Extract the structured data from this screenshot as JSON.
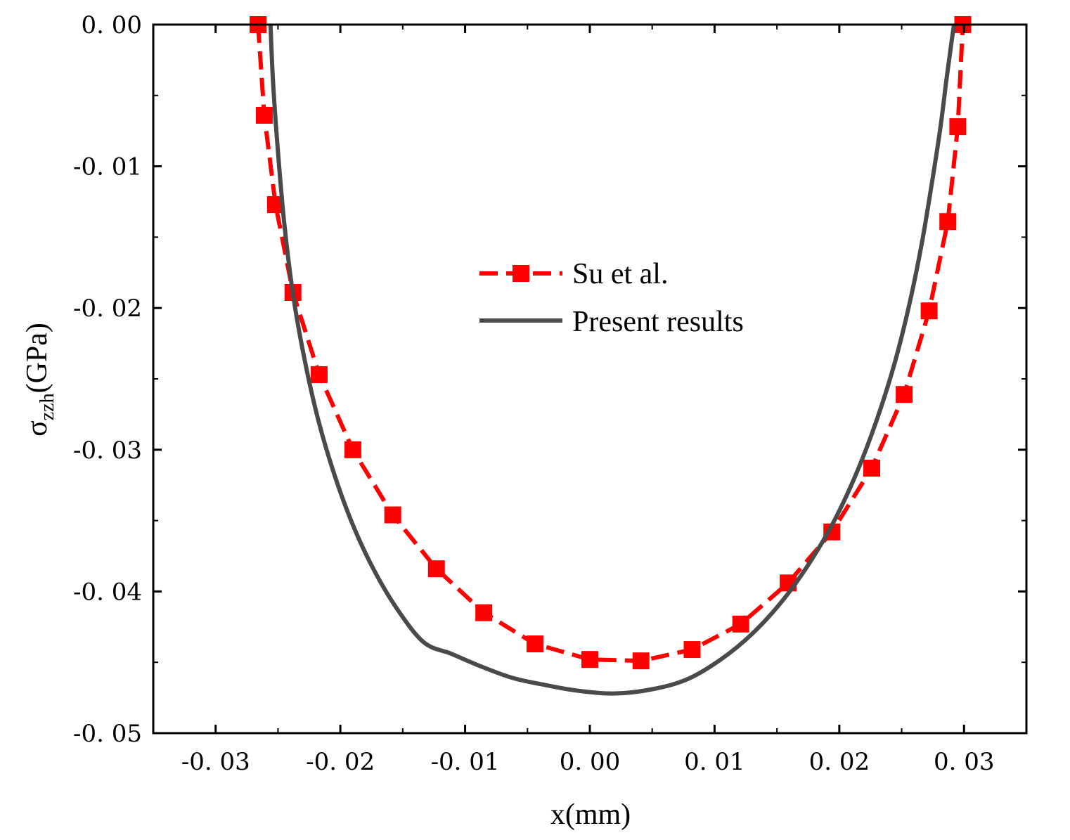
{
  "chart_data": {
    "type": "line",
    "title": "",
    "xlabel": "x(mm)",
    "ylabel_symbol": "σ",
    "ylabel_subscript": "zzh",
    "ylabel_unit": "(GPa)",
    "xlim": [
      -0.035,
      0.035
    ],
    "ylim": [
      -0.05,
      0.0
    ],
    "xticks": [
      -0.03,
      -0.02,
      -0.01,
      0.0,
      0.01,
      0.02,
      0.03
    ],
    "xtick_labels": [
      "-0. 03",
      "-0. 02",
      "-0. 01",
      "0. 00",
      "0. 01",
      "0. 02",
      "0. 03"
    ],
    "yticks": [
      0.0,
      -0.01,
      -0.02,
      -0.03,
      -0.04,
      -0.05
    ],
    "ytick_labels": [
      "0. 00",
      "-0. 01",
      "-0. 02",
      "-0. 03",
      "-0. 04",
      "-0. 05"
    ],
    "grid": false,
    "legend_position": "center",
    "series": [
      {
        "name": "Su et al.",
        "color": "#ff0000",
        "style": "dashed",
        "marker": "square",
        "x": [
          -0.0266,
          -0.0261,
          -0.0252,
          -0.0238,
          -0.0217,
          -0.019,
          -0.0158,
          -0.0123,
          -0.0085,
          -0.0044,
          0.0,
          0.0041,
          0.0082,
          0.0121,
          0.0159,
          0.0194,
          0.0226,
          0.0252,
          0.0272,
          0.0287,
          0.0295,
          0.0299
        ],
        "y": [
          0.0,
          -0.0064,
          -0.0127,
          -0.0189,
          -0.0247,
          -0.03,
          -0.0346,
          -0.0384,
          -0.0415,
          -0.0437,
          -0.0448,
          -0.0449,
          -0.0441,
          -0.0423,
          -0.0394,
          -0.0358,
          -0.0313,
          -0.0261,
          -0.0202,
          -0.0139,
          -0.0072,
          0.0
        ]
      },
      {
        "name": "Present results",
        "color": "#4a4a4a",
        "style": "solid",
        "marker": "none",
        "x": [
          -0.0256,
          -0.0254,
          -0.025,
          -0.0245,
          -0.0238,
          -0.0229,
          -0.0218,
          -0.0205,
          -0.019,
          -0.0173,
          -0.0154,
          -0.0133,
          -0.0111,
          -0.0087,
          -0.0062,
          -0.0036,
          -0.001,
          0.002,
          0.005,
          0.0078,
          0.0105,
          0.013,
          0.0154,
          0.0176,
          0.0196,
          0.0214,
          0.023,
          0.0244,
          0.0256,
          0.0266,
          0.0274,
          0.0281,
          0.0286,
          0.029,
          0.0292
        ],
        "y": [
          0.0,
          -0.004,
          -0.009,
          -0.014,
          -0.019,
          -0.0235,
          -0.0278,
          -0.0317,
          -0.0353,
          -0.0385,
          -0.0413,
          -0.0436,
          -0.0444,
          -0.0453,
          -0.0461,
          -0.0466,
          -0.047,
          -0.0472,
          -0.0469,
          -0.0462,
          -0.0448,
          -0.043,
          -0.0407,
          -0.038,
          -0.035,
          -0.0316,
          -0.0279,
          -0.024,
          -0.0198,
          -0.0155,
          -0.0113,
          -0.0073,
          -0.0038,
          -0.0012,
          0.0
        ]
      }
    ]
  }
}
